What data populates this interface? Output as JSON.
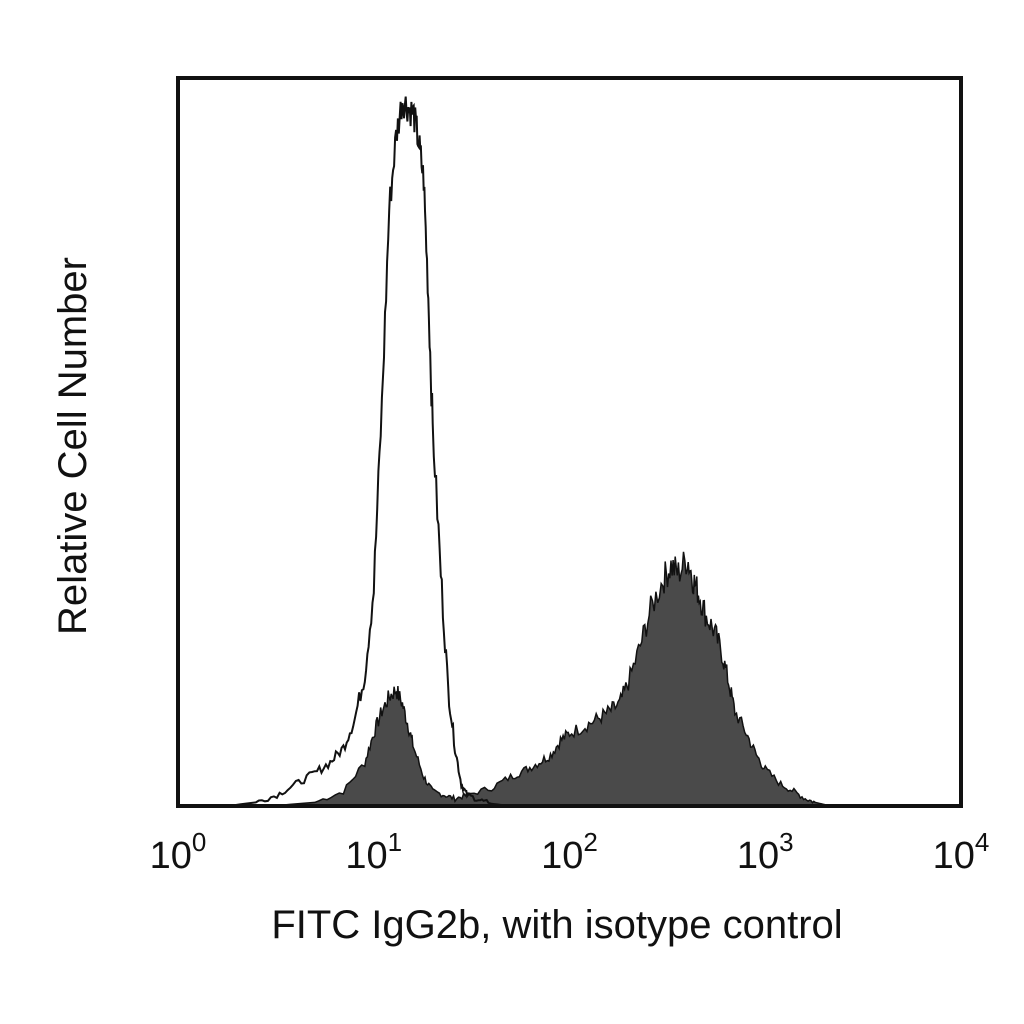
{
  "chart_data": {
    "type": "area",
    "title": "",
    "xlabel": "FITC IgG2b, with isotype control",
    "ylabel": "Relative Cell Number",
    "x_scale": "log",
    "xlim": [
      1,
      10000
    ],
    "ylim": [
      0,
      100
    ],
    "grid": false,
    "legend": "none",
    "x_ticks": [
      {
        "base": "10",
        "exp": "0",
        "value": 1
      },
      {
        "base": "10",
        "exp": "1",
        "value": 10
      },
      {
        "base": "10",
        "exp": "2",
        "value": 100
      },
      {
        "base": "10",
        "exp": "3",
        "value": 1000
      },
      {
        "base": "10",
        "exp": "4",
        "value": 10000
      }
    ],
    "series": [
      {
        "style": "outline",
        "color": "#111111",
        "x": [
          1.8,
          2.5,
          3.2,
          4.0,
          5.0,
          6.0,
          7.0,
          8.0,
          9.0,
          10.0,
          11.0,
          12.0,
          13.0,
          14.0,
          15.0,
          16.0,
          17.0,
          18.0,
          19.0,
          20.0,
          22.0,
          24.0,
          26.0,
          28.0,
          30.0,
          35.0,
          40.0,
          50.0
        ],
        "y": [
          0,
          0.5,
          1.5,
          3,
          4.5,
          6,
          8,
          12,
          18,
          30,
          55,
          82,
          92,
          97,
          96,
          95,
          91,
          86,
          70,
          52,
          32,
          16,
          8,
          3,
          1.5,
          0.8,
          0.3,
          0
        ]
      },
      {
        "style": "filled",
        "color": "#4a4a4a",
        "x": [
          3.0,
          5.0,
          7.0,
          9.0,
          10.0,
          11.0,
          12.0,
          13.0,
          14.0,
          15.0,
          16.0,
          18.0,
          20.0,
          23.0,
          26.0,
          30.0,
          40.0,
          50.0,
          60.0,
          70.0,
          80.0,
          90.0,
          100.0,
          120.0,
          140.0,
          160.0,
          180.0,
          200.0,
          230.0,
          260.0,
          300.0,
          330.0,
          360.0,
          400.0,
          430.0,
          460.0,
          500.0,
          550.0,
          600.0,
          650.0,
          700.0,
          800.0,
          900.0,
          1000.0,
          1200.0,
          1400.0,
          1600.0,
          1800.0,
          2000.0,
          2200.0
        ],
        "y": [
          0,
          0.5,
          2,
          6,
          10,
          13,
          15,
          16,
          14,
          11,
          8,
          4,
          2,
          1.5,
          1,
          1.5,
          2.5,
          4,
          5,
          6,
          7,
          9,
          10,
          11,
          12,
          13,
          14,
          17,
          22,
          27,
          31,
          33,
          32,
          34,
          31,
          29,
          26,
          24,
          21,
          17,
          13,
          10,
          7,
          5,
          3,
          2,
          1,
          0.5,
          0.2,
          0
        ]
      }
    ]
  }
}
